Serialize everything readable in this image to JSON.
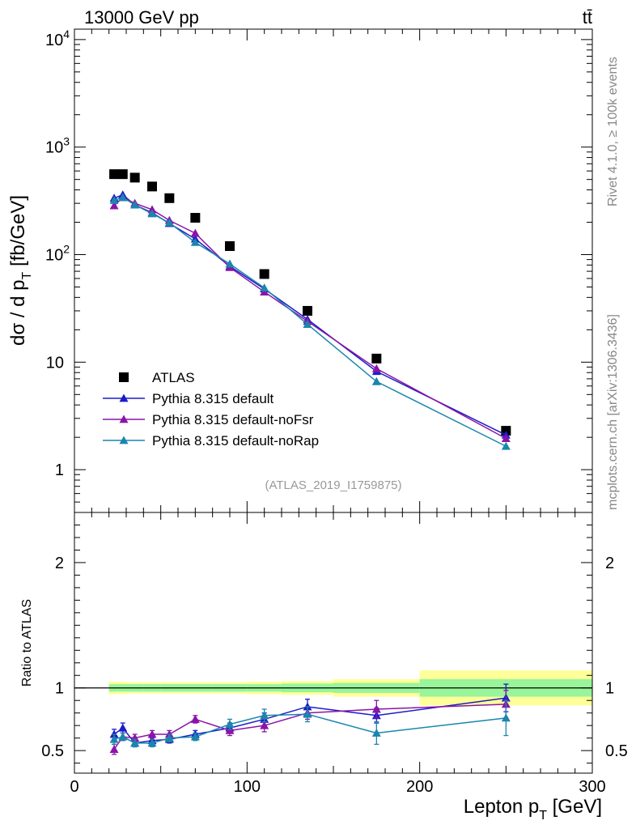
{
  "header": {
    "energy_label": "13000 GeV pp",
    "process_label": "tt̄"
  },
  "side_labels": {
    "rivet": "Rivet 4.1.0, ≥ 100k events",
    "mcplots": "mcplots.cern.ch [arXiv:1306.3436]"
  },
  "analysis_id": "(ATLAS_2019_I1759875)",
  "colors": {
    "atlas": "#000000",
    "default": "#1c1cc7",
    "nofsr": "#8b14a8",
    "norap": "#1a86ad",
    "band_inner": "#98f59a",
    "band_outer": "#ffff99"
  },
  "chart_data": [
    {
      "type": "scatter",
      "name": "main",
      "ylabel_main": "dσ / d p",
      "ylabel_sub": "T",
      "ylabel_unit": " [fb/GeV]",
      "yscale": "log",
      "xlim": [
        0,
        300
      ],
      "ylim": [
        0.4,
        12500
      ],
      "y_tick_labels": [
        {
          "value": 1,
          "base": "1",
          "exp": ""
        },
        {
          "value": 10,
          "base": "10",
          "exp": ""
        },
        {
          "value": 100,
          "base": "10",
          "exp": "2"
        },
        {
          "value": 1000,
          "base": "10",
          "exp": "3"
        },
        {
          "value": 10000,
          "base": "10",
          "exp": "4"
        }
      ],
      "legend_position": "bottom-left",
      "legend": [
        {
          "key": "atlas",
          "label": "ATLAS"
        },
        {
          "key": "default",
          "label": "Pythia 8.315 default"
        },
        {
          "key": "nofsr",
          "label": "Pythia 8.315 default-noFsr"
        },
        {
          "key": "norap",
          "label": "Pythia 8.315 default-noRap"
        }
      ],
      "series": [
        {
          "key": "atlas",
          "name": "ATLAS",
          "x": [
            23,
            28,
            35,
            45,
            55,
            70,
            90,
            110,
            135,
            175,
            250
          ],
          "y": [
            560,
            560,
            520,
            430,
            335,
            220,
            120,
            66,
            30,
            10.8,
            2.3
          ]
        },
        {
          "key": "default",
          "name": "Pythia 8.315 default",
          "x": [
            23,
            28,
            35,
            45,
            55,
            70,
            90,
            110,
            135,
            175,
            250
          ],
          "y": [
            335,
            360,
            290,
            245,
            195,
            140,
            78,
            48,
            25,
            8.2,
            2.1
          ]
        },
        {
          "key": "nofsr",
          "name": "Pythia 8.315 default-noFsr",
          "x": [
            23,
            28,
            35,
            45,
            55,
            70,
            90,
            110,
            135,
            175,
            250
          ],
          "y": [
            285,
            340,
            300,
            262,
            208,
            158,
            76,
            45,
            24,
            8.7,
            1.95
          ]
        },
        {
          "key": "norap",
          "name": "Pythia 8.315 default-noRap",
          "x": [
            23,
            28,
            35,
            45,
            55,
            70,
            90,
            110,
            135,
            175,
            250
          ],
          "y": [
            320,
            340,
            290,
            240,
            198,
            130,
            82,
            49,
            22.5,
            6.6,
            1.65
          ]
        }
      ]
    },
    {
      "type": "scatter",
      "name": "ratio",
      "ylabel": "Ratio to ATLAS",
      "xlabel_main": "Lepton p",
      "xlabel_sub": "T",
      "xlabel_unit": " [GeV]",
      "xlim": [
        0,
        300
      ],
      "ylim": [
        0.32,
        2.4
      ],
      "x_tick_labels": [
        "0",
        "100",
        "200",
        "300"
      ],
      "x_tick_values": [
        0,
        100,
        200,
        300
      ],
      "y_tick_labels": [
        "0.5",
        "1",
        "2"
      ],
      "y_tick_values": [
        0.5,
        1,
        2
      ],
      "bands": [
        {
          "x0": 20,
          "x1": 25,
          "inner": [
            0.97,
            1.03
          ],
          "outer": [
            0.95,
            1.05
          ]
        },
        {
          "x0": 25,
          "x1": 30,
          "inner": [
            0.97,
            1.03
          ],
          "outer": [
            0.95,
            1.05
          ]
        },
        {
          "x0": 30,
          "x1": 40,
          "inner": [
            0.97,
            1.03
          ],
          "outer": [
            0.955,
            1.045
          ]
        },
        {
          "x0": 40,
          "x1": 50,
          "inner": [
            0.97,
            1.03
          ],
          "outer": [
            0.955,
            1.045
          ]
        },
        {
          "x0": 50,
          "x1": 60,
          "inner": [
            0.97,
            1.03
          ],
          "outer": [
            0.955,
            1.045
          ]
        },
        {
          "x0": 60,
          "x1": 80,
          "inner": [
            0.97,
            1.03
          ],
          "outer": [
            0.955,
            1.045
          ]
        },
        {
          "x0": 80,
          "x1": 100,
          "inner": [
            0.97,
            1.03
          ],
          "outer": [
            0.955,
            1.045
          ]
        },
        {
          "x0": 100,
          "x1": 120,
          "inner": [
            0.97,
            1.03
          ],
          "outer": [
            0.95,
            1.05
          ]
        },
        {
          "x0": 120,
          "x1": 150,
          "inner": [
            0.965,
            1.035
          ],
          "outer": [
            0.945,
            1.055
          ]
        },
        {
          "x0": 150,
          "x1": 200,
          "inner": [
            0.96,
            1.04
          ],
          "outer": [
            0.93,
            1.07
          ]
        },
        {
          "x0": 200,
          "x1": 300,
          "inner": [
            0.93,
            1.07
          ],
          "outer": [
            0.86,
            1.14
          ]
        }
      ],
      "series": [
        {
          "key": "default",
          "name": "Pythia 8.315 default",
          "x": [
            23,
            28,
            35,
            45,
            55,
            70,
            90,
            110,
            135,
            175,
            250
          ],
          "y": [
            0.63,
            0.68,
            0.56,
            0.58,
            0.59,
            0.63,
            0.68,
            0.75,
            0.85,
            0.78,
            0.92
          ],
          "err": [
            0.04,
            0.04,
            0.03,
            0.03,
            0.03,
            0.03,
            0.04,
            0.05,
            0.06,
            0.06,
            0.11
          ]
        },
        {
          "key": "nofsr",
          "name": "Pythia 8.315 default-noFsr",
          "x": [
            23,
            28,
            35,
            45,
            55,
            70,
            90,
            110,
            135,
            175,
            250
          ],
          "y": [
            0.51,
            0.61,
            0.6,
            0.63,
            0.63,
            0.75,
            0.66,
            0.7,
            0.8,
            0.83,
            0.87
          ],
          "err": [
            0.04,
            0.03,
            0.03,
            0.03,
            0.03,
            0.03,
            0.04,
            0.05,
            0.05,
            0.07,
            0.11
          ]
        },
        {
          "key": "norap",
          "name": "Pythia 8.315 default-noRap",
          "x": [
            23,
            28,
            35,
            45,
            55,
            70,
            90,
            110,
            135,
            175,
            250
          ],
          "y": [
            0.59,
            0.61,
            0.56,
            0.56,
            0.6,
            0.61,
            0.71,
            0.78,
            0.79,
            0.64,
            0.76
          ],
          "err": [
            0.04,
            0.03,
            0.03,
            0.03,
            0.03,
            0.03,
            0.04,
            0.05,
            0.06,
            0.09,
            0.14
          ]
        }
      ]
    }
  ]
}
